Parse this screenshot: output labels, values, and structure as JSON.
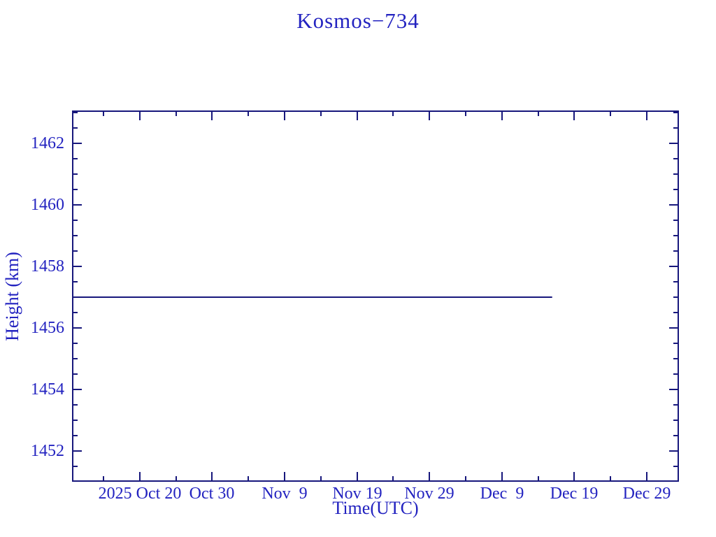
{
  "page": {
    "background_color": "#ffffff"
  },
  "colors": {
    "text": "#2323c0",
    "axis": "#17177c",
    "series_line": "#17177c",
    "background": "#ffffff"
  },
  "chart_data": {
    "type": "line",
    "title": "Kosmos−734",
    "xlabel": "Time(UTC)",
    "ylabel": "Height (km)",
    "grid": false,
    "legend": null,
    "x_axis": {
      "unit": "date (UTC)",
      "xlim_days": [
        0,
        83.8
      ],
      "axis_start_date_approx": "2025 Oct 10.6",
      "axis_end_date_approx": "2026 Jan 2.5",
      "major_ticks": [
        {
          "label": "2025 Oct 20",
          "day": 9.35
        },
        {
          "label": "Oct 30",
          "day": 19.35
        },
        {
          "label": "Nov  9",
          "day": 29.35
        },
        {
          "label": "Nov 19",
          "day": 39.35
        },
        {
          "label": "Nov 29",
          "day": 49.35
        },
        {
          "label": "Dec  9",
          "day": 59.35
        },
        {
          "label": "Dec 19",
          "day": 69.35
        },
        {
          "label": "Dec 29",
          "day": 79.35
        }
      ],
      "minor_ticks_days": [
        4.35,
        14.35,
        24.35,
        34.35,
        44.35,
        54.35,
        64.35,
        74.35
      ]
    },
    "y_axis": {
      "ylim": [
        1451.0,
        1463.07
      ],
      "major_ticks": [
        1452,
        1454,
        1456,
        1458,
        1460,
        1462
      ],
      "minor_tick_step": 0.5
    },
    "series": [
      {
        "name": "orbit-height",
        "x_days": [
          0,
          66.3
        ],
        "values": [
          1457.0,
          1457.0
        ],
        "description": "Constant orbit height of 1457.0 km from axis start (~2025 Oct 11) until ~2025 Dec 16; no data afterwards."
      }
    ]
  }
}
